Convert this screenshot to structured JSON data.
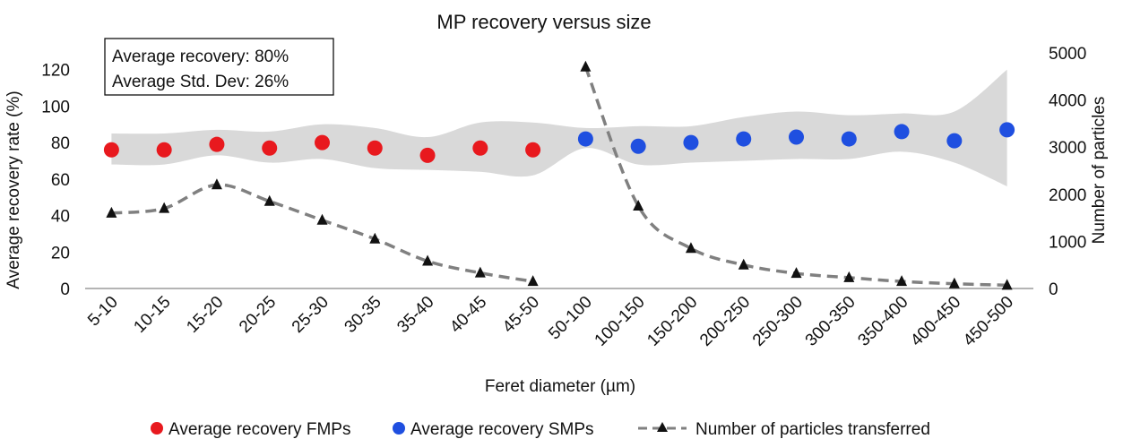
{
  "chart_data": {
    "type": "scatter",
    "title": "MP recovery versus size",
    "xlabel": "Feret diameter (µm)",
    "ylabel_left": "Average recovery rate (%)",
    "ylabel_right": "Number of particles",
    "categories": [
      "5-10",
      "10-15",
      "15-20",
      "20-25",
      "25-30",
      "30-35",
      "35-40",
      "40-45",
      "45-50",
      "50-100",
      "100-150",
      "150-200",
      "200-250",
      "250-300",
      "300-350",
      "350-400",
      "400-450",
      "450-500"
    ],
    "ylim_left": [
      0,
      140
    ],
    "yticks_left": [
      0,
      20,
      40,
      60,
      80,
      100,
      120
    ],
    "ylim_right": [
      0,
      5000
    ],
    "yticks_right": [
      0,
      1000,
      2000,
      3000,
      4000,
      5000
    ],
    "annotation": {
      "line1": "Average recovery: 80%",
      "line2": "Average Std. Dev: 26%"
    },
    "band": {
      "upper": [
        85,
        85,
        87,
        86,
        90,
        88,
        83,
        91,
        91,
        88,
        89,
        89,
        94,
        97,
        95,
        96,
        97,
        120
      ],
      "lower": [
        68,
        68,
        73,
        69,
        71,
        66,
        65,
        64,
        62,
        77,
        68,
        69,
        70,
        71,
        71,
        75,
        69,
        56
      ]
    },
    "series": [
      {
        "name": "Average recovery FMPs",
        "axis": "left",
        "color": "#e8191e",
        "marker": "circle",
        "values": [
          76,
          76,
          79,
          77,
          80,
          77,
          73,
          77,
          76,
          null,
          null,
          null,
          null,
          null,
          null,
          null,
          null,
          null
        ]
      },
      {
        "name": "Average recovery SMPs",
        "axis": "left",
        "color": "#1f4fe0",
        "marker": "circle",
        "values": [
          null,
          null,
          null,
          null,
          null,
          null,
          null,
          null,
          null,
          82,
          78,
          80,
          82,
          83,
          82,
          86,
          81,
          87
        ]
      },
      {
        "name": "Number of particles transferred",
        "axis": "right",
        "color": "#808080",
        "marker": "triangle",
        "line": "dashed",
        "segments": [
          [
            0,
            8
          ],
          [
            9,
            17
          ]
        ],
        "values": [
          1600,
          1700,
          2200,
          1850,
          1450,
          1050,
          580,
          330,
          150,
          4700,
          1750,
          850,
          500,
          320,
          230,
          150,
          100,
          70
        ]
      }
    ]
  }
}
